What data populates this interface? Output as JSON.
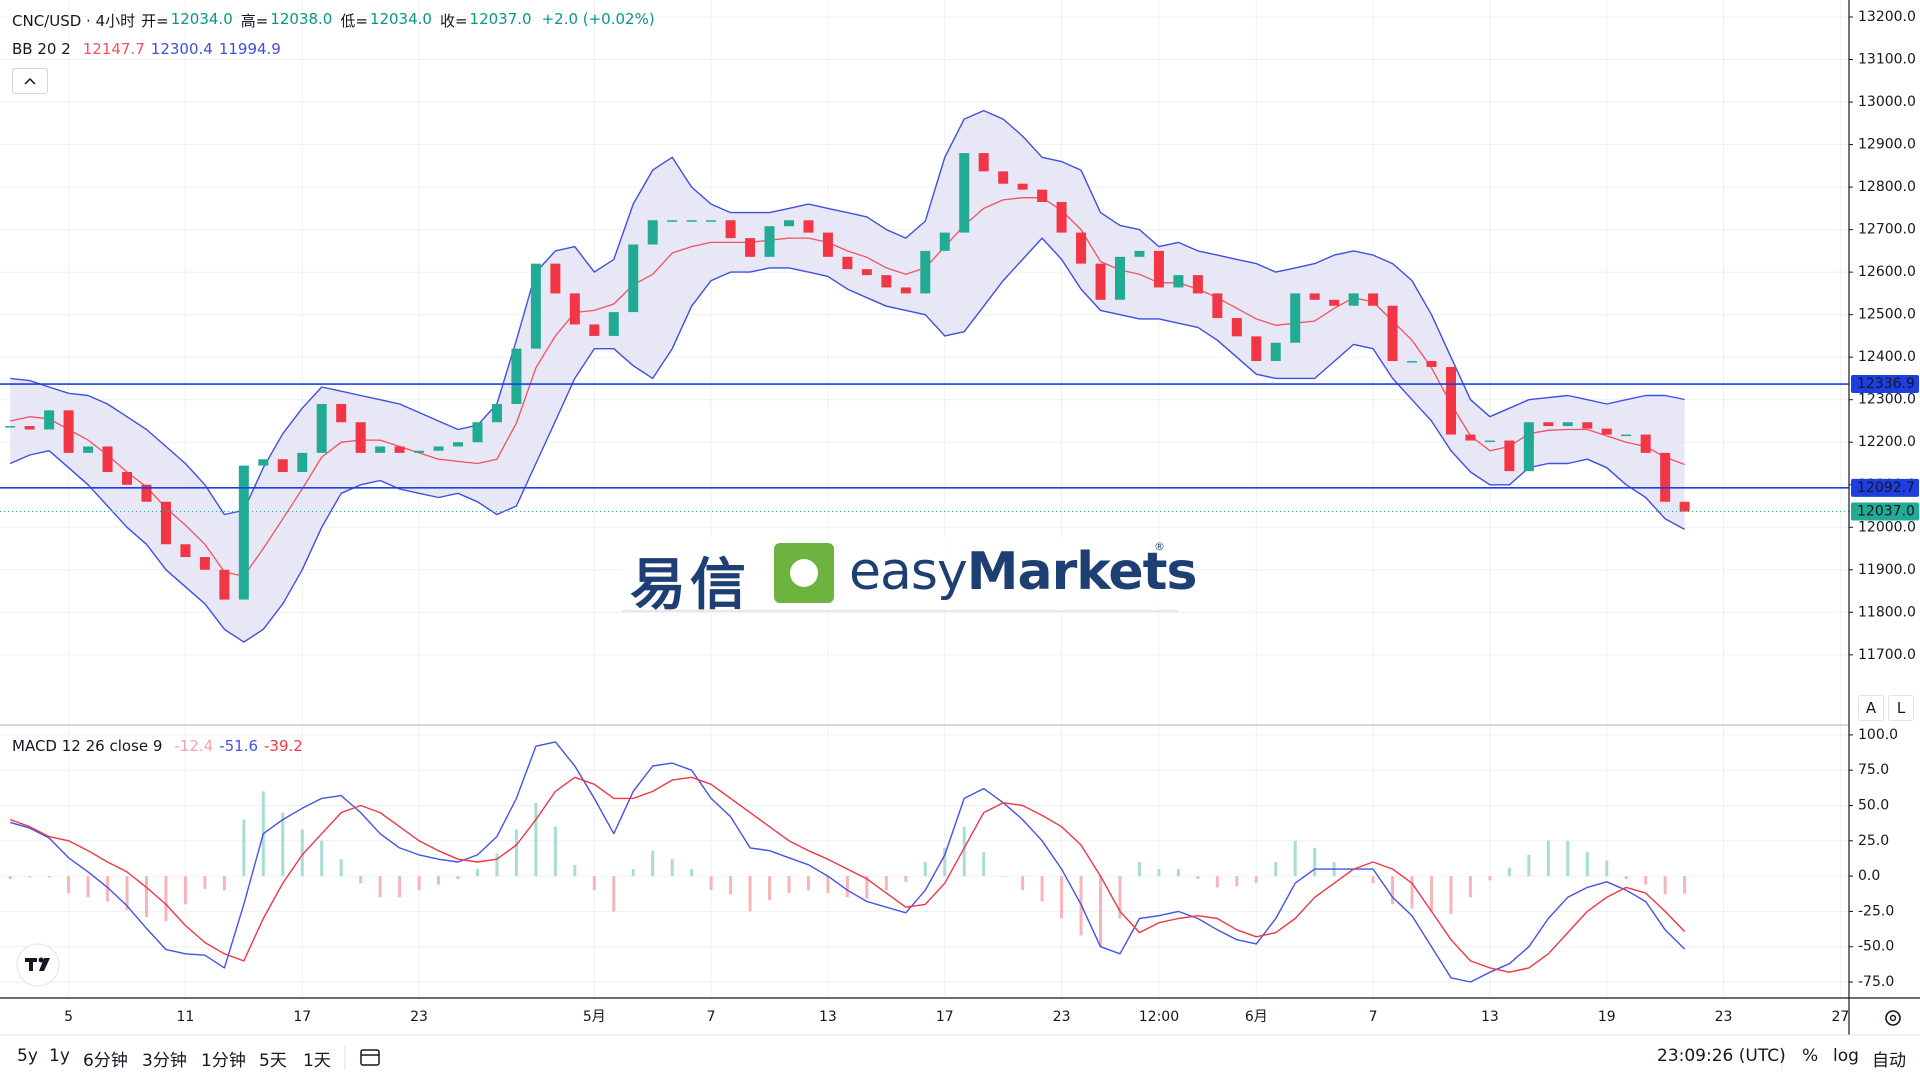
{
  "header": {
    "symbol": "CNC/USD · 4小时",
    "open_label": "开=",
    "open": "12034.0",
    "high_label": "高=",
    "high": "12038.0",
    "low_label": "低=",
    "low": "12034.0",
    "close_label": "收=",
    "close": "12037.0",
    "change": "+2.0 (+0.02%)"
  },
  "logo": {
    "chinese": "易信",
    "brand_light": "easy",
    "brand_bold": "Markets",
    "mark": "®"
  },
  "chart_data": [
    {
      "type": "candlestick",
      "categories": [
        null,
        null,
        null,
        "5",
        null,
        null,
        null,
        null,
        null,
        "11",
        null,
        null,
        null,
        null,
        null,
        "17",
        null,
        null,
        null,
        null,
        null,
        "23",
        null,
        null,
        null,
        null,
        null,
        null,
        null,
        null,
        "5月",
        null,
        null,
        null,
        null,
        null,
        "7",
        null,
        null,
        null,
        null,
        null,
        "13",
        null,
        null,
        null,
        null,
        null,
        "17",
        null,
        null,
        null,
        null,
        null,
        "23",
        null,
        null,
        null,
        null,
        "12:00",
        null,
        null,
        null,
        null,
        "6月",
        null,
        null,
        null,
        null,
        null,
        "7",
        null,
        null,
        null,
        null,
        null,
        "13",
        null,
        null,
        null,
        null,
        null,
        "19",
        null,
        null,
        null,
        null,
        null,
        "23",
        null,
        null,
        null,
        null,
        null,
        "27"
      ],
      "close": [
        12238,
        12230,
        12275,
        12175,
        12190,
        12130,
        12100,
        12060,
        11960,
        11930,
        11900,
        11830,
        12145,
        12160,
        12130,
        12175,
        12290,
        12247,
        12175,
        12190,
        12175,
        12180,
        12190,
        12200,
        12247,
        12290,
        12420,
        12620,
        12550,
        12477,
        12450,
        12506,
        12665,
        12722,
        12722,
        12722,
        12722,
        12680,
        12636,
        12708,
        12722,
        12693,
        12636,
        12607,
        12593,
        12564,
        12550,
        12650,
        12693,
        12880,
        12837,
        12808,
        12794,
        12765,
        12693,
        12620,
        12535,
        12636,
        12650,
        12564,
        12593,
        12550,
        12492,
        12449,
        12391,
        12434,
        12550,
        12535,
        12521,
        12550,
        12521,
        12391,
        12391,
        12377,
        12218,
        12204,
        12204,
        12132,
        12247,
        12238,
        12247,
        12232,
        12218,
        12218,
        12175,
        12060,
        12037,
        null,
        null,
        null,
        null,
        null,
        null,
        null,
        null
      ],
      "up_color": "#22ab94",
      "down_color": "#f23645",
      "bollinger": {
        "label": "BB 20 2",
        "fill": "#e3e3f5",
        "middle": {
          "color": "#f2525f",
          "values": [
            12250,
            12260,
            12255,
            12230,
            12205,
            12170,
            12130,
            12095,
            12045,
            12005,
            11960,
            11895,
            11885,
            11950,
            12020,
            12090,
            12165,
            12200,
            12205,
            12205,
            12190,
            12175,
            12160,
            12155,
            12150,
            12160,
            12245,
            12375,
            12450,
            12505,
            12510,
            12525,
            12570,
            12595,
            12645,
            12660,
            12670,
            12670,
            12670,
            12675,
            12680,
            12680,
            12670,
            12650,
            12635,
            12610,
            12595,
            12610,
            12660,
            12710,
            12750,
            12770,
            12775,
            12775,
            12745,
            12700,
            12625,
            12605,
            12595,
            12575,
            12575,
            12560,
            12540,
            12515,
            12490,
            12475,
            12480,
            12485,
            12515,
            12540,
            12530,
            12485,
            12440,
            12375,
            12290,
            12215,
            12180,
            12190,
            12220,
            12228,
            12230,
            12230,
            12215,
            12200,
            12190,
            12165,
            12147.7,
            null,
            null,
            null,
            null,
            null,
            null,
            null,
            null
          ]
        },
        "upper": {
          "color": "#3f4fe0",
          "values": [
            12350,
            12345,
            12330,
            12315,
            12310,
            12290,
            12260,
            12230,
            12190,
            12150,
            12100,
            12030,
            12040,
            12140,
            12220,
            12280,
            12330,
            12320,
            12310,
            12300,
            12290,
            12270,
            12250,
            12230,
            12240,
            12290,
            12440,
            12600,
            12650,
            12660,
            12600,
            12630,
            12760,
            12840,
            12870,
            12800,
            12760,
            12740,
            12740,
            12740,
            12750,
            12760,
            12750,
            12740,
            12730,
            12700,
            12680,
            12720,
            12870,
            12960,
            12980,
            12960,
            12920,
            12870,
            12860,
            12840,
            12740,
            12710,
            12700,
            12660,
            12670,
            12650,
            12640,
            12630,
            12620,
            12600,
            12610,
            12620,
            12640,
            12650,
            12640,
            12620,
            12580,
            12500,
            12400,
            12300,
            12260,
            12280,
            12300,
            12305,
            12310,
            12300,
            12290,
            12300,
            12310,
            12310,
            12300.4,
            null,
            null,
            null,
            null,
            null,
            null,
            null,
            null
          ]
        },
        "lower": {
          "color": "#3f4fe0",
          "values": [
            12150,
            12170,
            12180,
            12140,
            12100,
            12050,
            12000,
            11960,
            11900,
            11860,
            11820,
            11760,
            11730,
            11760,
            11820,
            11900,
            12000,
            12080,
            12100,
            12110,
            12090,
            12080,
            12070,
            12080,
            12060,
            12030,
            12050,
            12150,
            12250,
            12350,
            12420,
            12420,
            12380,
            12350,
            12420,
            12520,
            12580,
            12600,
            12600,
            12610,
            12610,
            12600,
            12590,
            12560,
            12540,
            12520,
            12510,
            12500,
            12450,
            12460,
            12520,
            12580,
            12630,
            12680,
            12630,
            12560,
            12510,
            12500,
            12490,
            12490,
            12480,
            12470,
            12440,
            12400,
            12360,
            12350,
            12350,
            12350,
            12390,
            12430,
            12420,
            12350,
            12300,
            12250,
            12180,
            12130,
            12100,
            12100,
            12140,
            12150,
            12150,
            12160,
            12140,
            12100,
            12070,
            12020,
            11994.9,
            null,
            null,
            null,
            null,
            null,
            null,
            null,
            null
          ]
        }
      },
      "levels": [
        {
          "value": 12336.9,
          "color": "#1f3ee0",
          "style": "solid"
        },
        {
          "value": 12092.7,
          "color": "#1f3ee0",
          "style": "solid"
        },
        {
          "value": 12037,
          "label": "12037.0",
          "color": "#22ab94",
          "style": "dotted"
        }
      ],
      "ylim": [
        11535,
        13240
      ],
      "yticks": [
        {
          "value": 11700,
          "label": "11700.0"
        },
        {
          "value": 11800,
          "label": "11800.0"
        },
        {
          "value": 11900,
          "label": "11900.0"
        },
        {
          "value": 12000,
          "label": "12000.0"
        },
        {
          "value": 12100,
          "label": "12100.0"
        },
        {
          "value": 12200,
          "label": "12200.0"
        },
        {
          "value": 12300,
          "label": "12300.0"
        },
        {
          "value": 12400,
          "label": "12400.0"
        },
        {
          "value": 12500,
          "label": "12500.0"
        },
        {
          "value": 12600,
          "label": "12600.0"
        },
        {
          "value": 12700,
          "label": "12700.0"
        },
        {
          "value": 12800,
          "label": "12800.0"
        },
        {
          "value": 12900,
          "label": "12900.0"
        },
        {
          "value": 13000,
          "label": "13000.0"
        },
        {
          "value": 13100,
          "label": "13100.0"
        },
        {
          "value": 13200,
          "label": "13200.0"
        }
      ],
      "grid": true,
      "scale_buttons": [
        "A",
        "L"
      ]
    },
    {
      "type": "macd",
      "label": "MACD 12 26 close 9",
      "histogram": {
        "positive_color": "#a8dcd5",
        "negative_color": "#f9b4b8",
        "legend_color": "#f5a3a8",
        "values": [
          -2,
          -1,
          -1,
          -12,
          -15,
          -18,
          -24,
          -29,
          -32,
          -20,
          -9,
          -10,
          40,
          60,
          45,
          33,
          25,
          12,
          -5,
          -15,
          -15,
          -10,
          -6,
          -2,
          5,
          16,
          33,
          52,
          35,
          8,
          -10,
          -25,
          5,
          18,
          12,
          5,
          -10,
          -13,
          -25,
          -17,
          -12,
          -10,
          -12,
          -15,
          -16,
          -10,
          -4,
          10,
          20,
          35,
          17,
          0,
          -10,
          -18,
          -30,
          -42,
          -50,
          -30,
          10,
          5,
          5,
          -2,
          -8,
          -7,
          -5,
          10,
          25,
          20,
          10,
          0,
          -5,
          -20,
          -23,
          -25,
          -27,
          -15,
          -3,
          6,
          15,
          25,
          25,
          17,
          11,
          -2,
          -6,
          -13,
          -12.4,
          null,
          null,
          null,
          null,
          null,
          null,
          null,
          null
        ]
      },
      "macd": {
        "color": "#4353e8",
        "values": [
          38,
          34,
          27,
          13,
          3,
          -8,
          -21,
          -37,
          -52,
          -55,
          -56,
          -65,
          -20,
          30,
          40,
          48,
          55,
          57,
          45,
          30,
          20,
          15,
          12,
          10,
          15,
          28,
          55,
          92,
          95,
          78,
          55,
          30,
          60,
          78,
          80,
          75,
          55,
          42,
          20,
          18,
          13,
          8,
          0,
          -10,
          -18,
          -22,
          -26,
          -10,
          15,
          55,
          62,
          52,
          40,
          25,
          5,
          -20,
          -50,
          -55,
          -30,
          -28,
          -25,
          -30,
          -38,
          -45,
          -48,
          -30,
          -5,
          5,
          5,
          5,
          5,
          -15,
          -28,
          -50,
          -72,
          -75,
          -68,
          -62,
          -50,
          -30,
          -15,
          -8,
          -4,
          -10,
          -18,
          -38,
          -51.6,
          null,
          null,
          null,
          null,
          null,
          null,
          null,
          null
        ]
      },
      "signal": {
        "color": "#f23645",
        "values": [
          40,
          35,
          28,
          25,
          18,
          10,
          3,
          -8,
          -20,
          -35,
          -47,
          -55,
          -60,
          -30,
          -5,
          15,
          30,
          45,
          50,
          45,
          35,
          25,
          18,
          12,
          10,
          12,
          22,
          40,
          60,
          70,
          65,
          55,
          55,
          60,
          68,
          70,
          65,
          55,
          45,
          35,
          25,
          18,
          12,
          5,
          -2,
          -12,
          -22,
          -20,
          -5,
          20,
          45,
          52,
          50,
          43,
          35,
          22,
          0,
          -25,
          -40,
          -33,
          -30,
          -28,
          -30,
          -38,
          -43,
          -40,
          -30,
          -15,
          -5,
          5,
          10,
          5,
          -5,
          -25,
          -45,
          -60,
          -65,
          -68,
          -65,
          -55,
          -40,
          -25,
          -15,
          -8,
          -12,
          -25,
          -39.2,
          null,
          null,
          null,
          null,
          null,
          null,
          null,
          null
        ]
      },
      "ylim": [
        -86.3,
        107
      ],
      "yticks": [
        {
          "value": 100,
          "label": "100.0"
        },
        {
          "value": 75,
          "label": "75.0"
        },
        {
          "value": 50,
          "label": "50.0"
        },
        {
          "value": 25,
          "label": "25.0"
        },
        {
          "value": 0,
          "label": "0.0"
        },
        {
          "value": -25,
          "label": "-25.0"
        },
        {
          "value": -50,
          "label": "-50.0"
        },
        {
          "value": -75,
          "label": "-75.0"
        }
      ],
      "grid": true
    }
  ],
  "toolbar": {
    "ranges": [
      "5y",
      "1y",
      "6分钟",
      "3分钟",
      "1分钟",
      "5天",
      "1天"
    ],
    "time": "23:09:26 (UTC)",
    "options": [
      "%",
      "log",
      "自动"
    ]
  }
}
